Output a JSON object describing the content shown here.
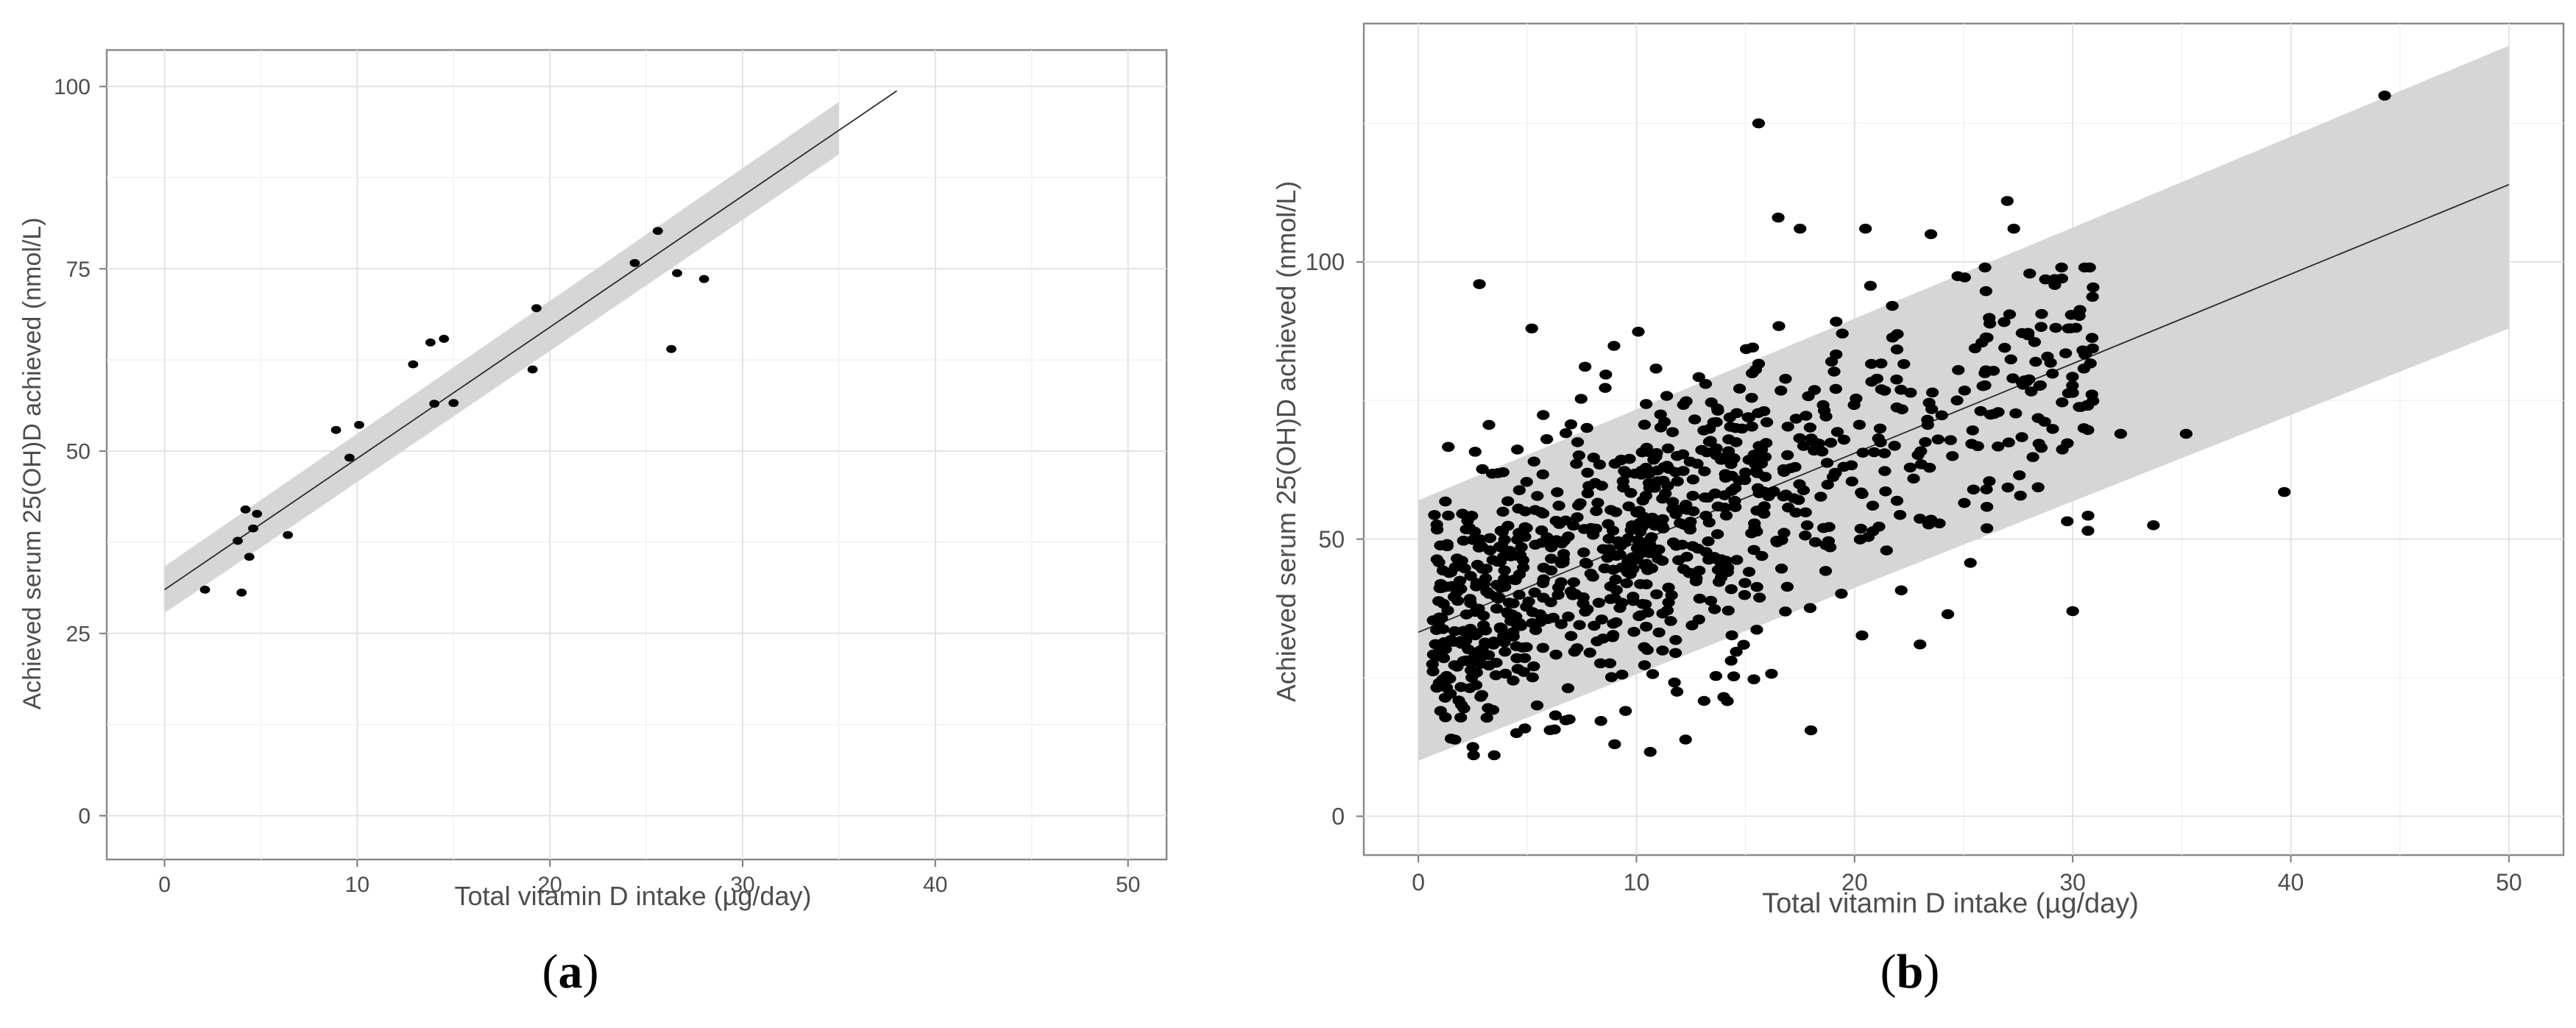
{
  "chart_data": [
    {
      "panel": "(a)",
      "panel_label_prefix": "(",
      "panel_label_letter": "a",
      "panel_label_suffix": ")",
      "type": "scatter",
      "xlabel": "Total vitamin D intake (µg/day)",
      "ylabel": "Achieved serum 25(OH)D achieved (nmol/L)",
      "xlim": [
        -3,
        52
      ],
      "ylim": [
        -6,
        105
      ],
      "xticks": [
        0,
        10,
        20,
        30,
        40,
        50
      ],
      "yticks": [
        0,
        25,
        50,
        75,
        100
      ],
      "grid": true,
      "legend": "none",
      "regression": {
        "intercept": 31.0,
        "slope": 1.8,
        "x_range": [
          0,
          38
        ]
      },
      "band": {
        "x_range": [
          0,
          35
        ],
        "lower_at_start": 27.8,
        "upper_at_start": 34.2,
        "lower_at_end": 90.7,
        "upper_at_end": 97.9
      },
      "points": [
        [
          2.1,
          31.0
        ],
        [
          3.8,
          37.7
        ],
        [
          4.0,
          30.6
        ],
        [
          4.2,
          42.0
        ],
        [
          4.4,
          35.5
        ],
        [
          4.6,
          39.4
        ],
        [
          4.8,
          41.4
        ],
        [
          6.4,
          38.5
        ],
        [
          8.9,
          52.9
        ],
        [
          9.6,
          49.1
        ],
        [
          10.1,
          53.6
        ],
        [
          12.9,
          61.9
        ],
        [
          13.8,
          64.9
        ],
        [
          14.0,
          56.5
        ],
        [
          14.5,
          65.4
        ],
        [
          15.0,
          56.6
        ],
        [
          19.1,
          61.2
        ],
        [
          19.3,
          69.6
        ],
        [
          24.4,
          75.8
        ],
        [
          25.6,
          80.2
        ],
        [
          26.3,
          64.0
        ],
        [
          26.6,
          74.4
        ],
        [
          28.0,
          73.6
        ]
      ]
    },
    {
      "panel": "(b)",
      "panel_label_prefix": "(",
      "panel_label_letter": "b",
      "panel_label_suffix": ")",
      "type": "scatter",
      "xlabel": "Total vitamin D intake (µg/day)",
      "ylabel": "Achieved serum 25(OH)D achieved (nmol/L)",
      "xlim": [
        -2.5,
        52.5
      ],
      "ylim": [
        -7,
        143
      ],
      "xticks": [
        0,
        10,
        20,
        30,
        40,
        50
      ],
      "yticks": [
        0,
        50,
        100
      ],
      "grid": true,
      "legend": "none",
      "regression": {
        "intercept": 33.2,
        "slope": 1.615,
        "x_range": [
          0,
          50
        ]
      },
      "band": {
        "x_range": [
          0,
          50
        ],
        "lower_at_start": 10.0,
        "upper_at_start": 57.0,
        "lower_at_end": 88.0,
        "upper_at_end": 139.0
      },
      "n_points": 920,
      "outliers": [
        [
          2.8,
          96.0
        ],
        [
          5.2,
          88.0
        ],
        [
          15.6,
          125.0
        ],
        [
          16.5,
          108.0
        ],
        [
          17.5,
          106.0
        ],
        [
          20.5,
          106.0
        ],
        [
          23.5,
          105.0
        ],
        [
          27.0,
          111.0
        ],
        [
          27.3,
          106.0
        ],
        [
          29.5,
          97.0
        ],
        [
          18.0,
          15.5
        ],
        [
          9.5,
          19.0
        ],
        [
          14.0,
          21.5
        ],
        [
          39.7,
          58.5
        ],
        [
          44.3,
          130.0
        ],
        [
          35.2,
          69.0
        ],
        [
          33.7,
          52.5
        ],
        [
          32.2,
          69.0
        ],
        [
          30.7,
          51.5
        ],
        [
          30.0,
          37.0
        ],
        [
          29.8,
          88.0
        ],
        [
          4.5,
          15.0
        ],
        [
          2.5,
          12.5
        ],
        [
          1.5,
          14.0
        ],
        [
          9.0,
          13.0
        ],
        [
          10.5,
          30.0
        ],
        [
          23.0,
          31.0
        ]
      ]
    }
  ]
}
